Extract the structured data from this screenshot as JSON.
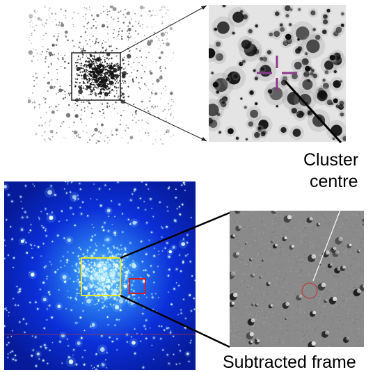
{
  "labels": {
    "cluster_centre_line1": "Cluster",
    "cluster_centre_line2": "centre",
    "subtracted_frame": "Subtracted frame"
  },
  "colors": {
    "crosshair": "#8a3a8a",
    "zoom_box_top": "#222222",
    "zoom_box_bottom": "#e8e82a",
    "secondary_box": "#d82020",
    "centre_circle": "#c03030",
    "blue_background": "#0a1fd0",
    "blue_core": "#9fe6ff",
    "pointer_line": "#000000",
    "residual_background": "#8a8a8a"
  },
  "panels": {
    "top_left": "greyscale cluster field image",
    "top_right": "zoomed inverted cluster core",
    "bottom_left": "false-colour blue cluster image",
    "bottom_right": "residual subtracted frame"
  }
}
